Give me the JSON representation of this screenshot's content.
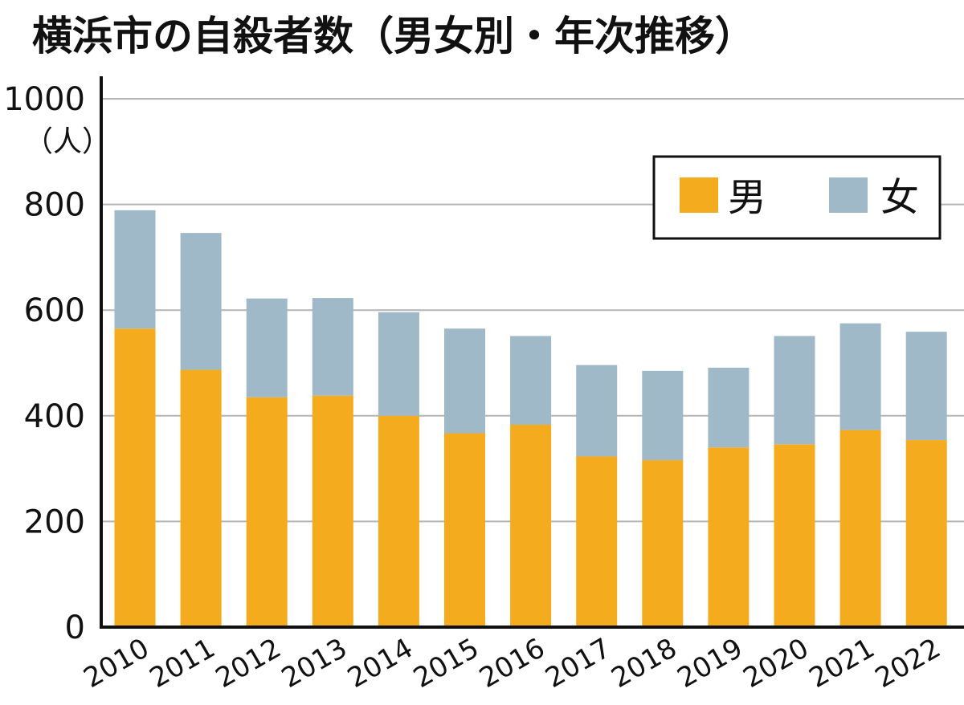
{
  "chart_data": {
    "type": "bar",
    "stacked": true,
    "title": "横浜市の自殺者数（男女別・年次推移）",
    "y_unit": "（人）",
    "categories": [
      "2010",
      "2011",
      "2012",
      "2013",
      "2014",
      "2015",
      "2016",
      "2017",
      "2018",
      "2019",
      "2020",
      "2021",
      "2022"
    ],
    "series": [
      {
        "name": "男",
        "color": "#f5ab1e",
        "values": [
          565,
          487,
          435,
          438,
          400,
          367,
          383,
          323,
          316,
          340,
          346,
          373,
          354
        ]
      },
      {
        "name": "女",
        "color": "#9fb9c8",
        "values": [
          224,
          259,
          187,
          185,
          196,
          198,
          168,
          173,
          169,
          151,
          205,
          202,
          205
        ]
      }
    ],
    "ylim": [
      0,
      1000
    ],
    "yticks": [
      0,
      200,
      400,
      600,
      800,
      1000
    ],
    "grid": true,
    "legend_position": "top-right"
  }
}
